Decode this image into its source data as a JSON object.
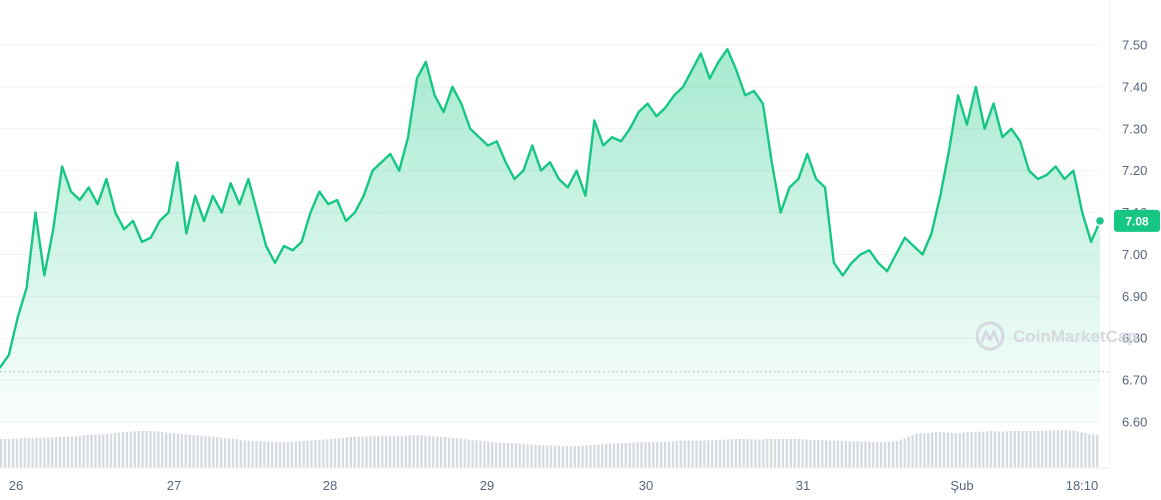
{
  "chart_data": {
    "type": "area",
    "title": "",
    "xlabel": "",
    "ylabel": "",
    "x_ticks": [
      "26",
      "27",
      "28",
      "29",
      "30",
      "31",
      "Şub",
      "18:10"
    ],
    "y_ticks": [
      "7.50",
      "7.40",
      "7.30",
      "7.20",
      "7.10",
      "7.00",
      "6.90",
      "6.80",
      "6.70",
      "6.60"
    ],
    "ylim": [
      6.6,
      7.5
    ],
    "grid": true,
    "current_price": "7.08",
    "reference_line": 6.72,
    "series": [
      {
        "values": [
          6.73,
          6.76,
          6.85,
          6.92,
          7.1,
          6.95,
          7.06,
          7.21,
          7.15,
          7.13,
          7.16,
          7.12,
          7.18,
          7.1,
          7.06,
          7.08,
          7.03,
          7.04,
          7.08,
          7.1,
          7.22,
          7.05,
          7.14,
          7.08,
          7.14,
          7.1,
          7.17,
          7.12,
          7.18,
          7.1,
          7.02,
          6.98,
          7.02,
          7.01,
          7.03,
          7.1,
          7.15,
          7.12,
          7.13,
          7.08,
          7.1,
          7.14,
          7.2,
          7.22,
          7.24,
          7.2,
          7.28,
          7.42,
          7.46,
          7.38,
          7.34,
          7.4,
          7.36,
          7.3,
          7.28,
          7.26,
          7.27,
          7.22,
          7.18,
          7.2,
          7.26,
          7.2,
          7.22,
          7.18,
          7.16,
          7.2,
          7.14,
          7.32,
          7.26,
          7.28,
          7.27,
          7.3,
          7.34,
          7.36,
          7.33,
          7.35,
          7.38,
          7.4,
          7.44,
          7.48,
          7.42,
          7.46,
          7.49,
          7.44,
          7.38,
          7.39,
          7.36,
          7.22,
          7.1,
          7.16,
          7.18,
          7.24,
          7.18,
          7.16,
          6.98,
          6.95,
          6.98,
          7.0,
          7.01,
          6.98,
          6.96,
          7.0,
          7.04,
          7.02,
          7.0,
          7.05,
          7.14,
          7.25,
          7.38,
          7.31,
          7.4,
          7.3,
          7.36,
          7.28,
          7.3,
          7.27,
          7.2,
          7.18,
          7.19,
          7.21,
          7.18,
          7.2,
          7.1,
          7.03,
          7.08
        ]
      }
    ],
    "volume": [
      0.35,
      0.35,
      0.36,
      0.36,
      0.37,
      0.37,
      0.38,
      0.38,
      0.4,
      0.41,
      0.41,
      0.43,
      0.44,
      0.45,
      0.45,
      0.44,
      0.42,
      0.41,
      0.4,
      0.39,
      0.38,
      0.36,
      0.35,
      0.33,
      0.32,
      0.32,
      0.31,
      0.31,
      0.32,
      0.33,
      0.34,
      0.35,
      0.36,
      0.38,
      0.38,
      0.39,
      0.39,
      0.39,
      0.39,
      0.4,
      0.39,
      0.38,
      0.37,
      0.36,
      0.34,
      0.33,
      0.31,
      0.3,
      0.3,
      0.29,
      0.28,
      0.27,
      0.27,
      0.26,
      0.26,
      0.27,
      0.28,
      0.29,
      0.3,
      0.3,
      0.31,
      0.31,
      0.31,
      0.32,
      0.33,
      0.33,
      0.33,
      0.34,
      0.34,
      0.35,
      0.35,
      0.34,
      0.35,
      0.35,
      0.35,
      0.35,
      0.34,
      0.34,
      0.33,
      0.33,
      0.32,
      0.32,
      0.31,
      0.31,
      0.32,
      0.36,
      0.42,
      0.42,
      0.44,
      0.43,
      0.42,
      0.44,
      0.44,
      0.45,
      0.44,
      0.45,
      0.45,
      0.45,
      0.45,
      0.46,
      0.46,
      0.45,
      0.42,
      0.4
    ]
  },
  "watermark": {
    "brand": "CoinMarketCap"
  },
  "colors": {
    "line": "#16c784",
    "area_top": "#16c784",
    "volume": "#d5d9e0",
    "grid": "#f0f2f5",
    "axis_text": "#58667e"
  }
}
